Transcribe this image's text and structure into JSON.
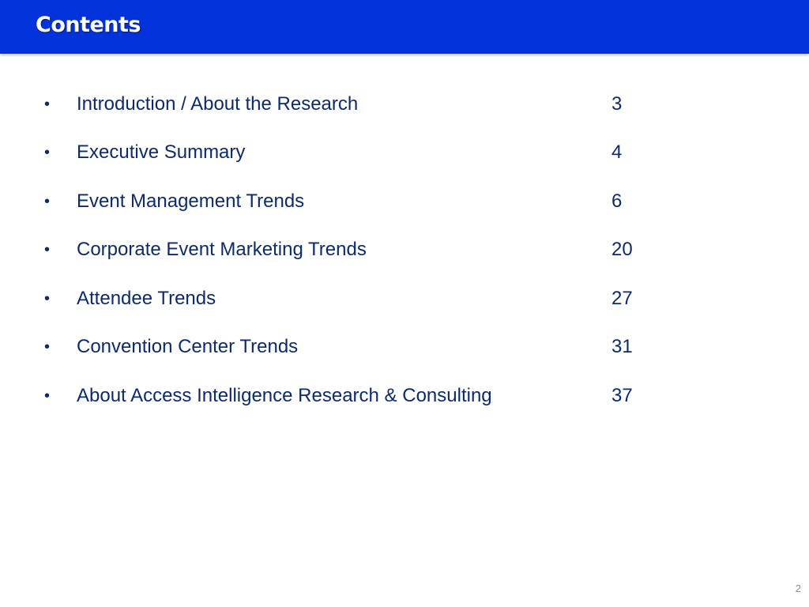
{
  "header": {
    "title": "Contents",
    "color": "#0232d9"
  },
  "toc": {
    "bullet": "•",
    "items": [
      {
        "label": "Introduction / About the Research",
        "page": "3"
      },
      {
        "label": "Executive Summary",
        "page": "4"
      },
      {
        "label": "Event Management Trends",
        "page": "6"
      },
      {
        "label": "Corporate Event Marketing Trends",
        "page": "20"
      },
      {
        "label": "Attendee Trends",
        "page": "27"
      },
      {
        "label": "Convention Center Trends",
        "page": "31"
      },
      {
        "label": "About Access Intelligence Research & Consulting",
        "page": "37"
      }
    ]
  },
  "footer": {
    "slide_number": "2"
  }
}
